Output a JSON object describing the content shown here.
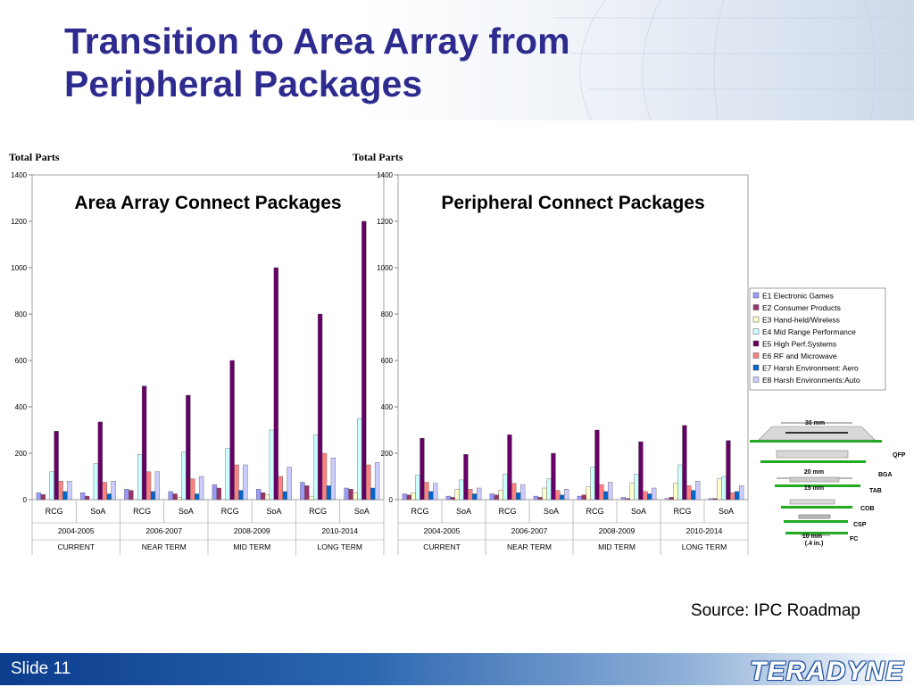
{
  "slide": {
    "title_line1": "Transition to Area Array from",
    "title_line2": "Peripheral Packages",
    "source": "Source: IPC Roadmap",
    "slide_number": "Slide 11",
    "logo_text": "TERADYNE"
  },
  "colors": {
    "title": "#2e2b8f",
    "footer": "#1d4f9e"
  },
  "chart_data": [
    {
      "type": "bar",
      "title": "Area Array Connect Packages",
      "ylabel": "Total Parts",
      "ylim": [
        0,
        1400
      ],
      "yticks": [
        0,
        200,
        400,
        600,
        800,
        1000,
        1200,
        1400
      ],
      "categories": [
        "RCG",
        "SoA",
        "RCG",
        "SoA",
        "RCG",
        "SoA",
        "RCG",
        "SoA"
      ],
      "groups_level2": [
        "2004-2005",
        "2006-2007",
        "2008-2009",
        "2010-2014"
      ],
      "groups_level3": [
        "CURRENT",
        "NEAR TERM",
        "MID TERM",
        "LONG TERM"
      ],
      "series": [
        {
          "name": "E1 Electronic Games",
          "values": [
            30,
            30,
            45,
            35,
            65,
            45,
            75,
            50
          ]
        },
        {
          "name": "E2 Consumer Products",
          "values": [
            22,
            15,
            40,
            25,
            50,
            30,
            60,
            45
          ]
        },
        {
          "name": "E3 Hand-held/Wireless",
          "values": [
            0,
            0,
            0,
            10,
            0,
            20,
            15,
            30
          ]
        },
        {
          "name": "E4 Mid Range Performance",
          "values": [
            120,
            155,
            195,
            205,
            220,
            300,
            280,
            350
          ]
        },
        {
          "name": "E5 High Perf.Systems",
          "values": [
            295,
            335,
            490,
            450,
            600,
            1000,
            800,
            1200
          ]
        },
        {
          "name": "E6 RF and Microwave",
          "values": [
            80,
            75,
            120,
            90,
            150,
            100,
            200,
            150
          ]
        },
        {
          "name": "E7 Harsh Environment: Aero",
          "values": [
            35,
            25,
            35,
            25,
            40,
            35,
            60,
            50
          ]
        },
        {
          "name": "E8 Harsh Environments:Auto",
          "values": [
            80,
            80,
            120,
            100,
            150,
            140,
            180,
            160
          ]
        }
      ]
    },
    {
      "type": "bar",
      "title": "Peripheral Connect Packages",
      "ylabel": "Total Parts",
      "ylim": [
        0,
        1400
      ],
      "yticks": [
        0,
        200,
        400,
        600,
        800,
        1000,
        1200,
        1400
      ],
      "categories": [
        "RCG",
        "SoA",
        "RCG",
        "SoA",
        "RCG",
        "SoA",
        "RCG",
        "SoA"
      ],
      "groups_level2": [
        "2004-2005",
        "2006-2007",
        "2008-2009",
        "2010-2014"
      ],
      "groups_level3": [
        "CURRENT",
        "NEAR TERM",
        "MID TERM",
        "LONG TERM"
      ],
      "series": [
        {
          "name": "E1 Electronic Games",
          "values": [
            25,
            15,
            25,
            15,
            15,
            10,
            5,
            5
          ]
        },
        {
          "name": "E2 Consumer Products",
          "values": [
            20,
            10,
            20,
            10,
            20,
            5,
            10,
            5
          ]
        },
        {
          "name": "E3 Hand-held/Wireless",
          "values": [
            30,
            45,
            40,
            50,
            55,
            70,
            70,
            90
          ]
        },
        {
          "name": "E4 Mid Range Performance",
          "values": [
            105,
            85,
            110,
            90,
            140,
            110,
            150,
            100
          ]
        },
        {
          "name": "E5 High Perf.Systems",
          "values": [
            265,
            195,
            280,
            200,
            300,
            250,
            320,
            255
          ]
        },
        {
          "name": "E6 RF and Microwave",
          "values": [
            75,
            45,
            70,
            40,
            65,
            35,
            60,
            30
          ]
        },
        {
          "name": "E7 Harsh Environment: Aero",
          "values": [
            35,
            25,
            30,
            20,
            35,
            25,
            40,
            35
          ]
        },
        {
          "name": "E8 Harsh Environments:Auto",
          "values": [
            70,
            50,
            65,
            45,
            75,
            50,
            80,
            60
          ]
        }
      ]
    }
  ],
  "legend": {
    "items": [
      {
        "label": "E1 Electronic Games",
        "color": "#9999ff"
      },
      {
        "label": "E2 Consumer Products",
        "color": "#993366"
      },
      {
        "label": "E3 Hand-held/Wireless",
        "color": "#ffffcc"
      },
      {
        "label": "E4 Mid Range Performance",
        "color": "#ccffff"
      },
      {
        "label": "E5 High Perf.Systems",
        "color": "#660066"
      },
      {
        "label": "E6 RF and Microwave",
        "color": "#ff8080"
      },
      {
        "label": "E7 Harsh Environment: Aero",
        "color": "#0066cc"
      },
      {
        "label": "E8 Harsh Environments:Auto",
        "color": "#ccccff"
      }
    ]
  },
  "package_diagram": {
    "dimensions": [
      "30 mm",
      "20 mm",
      "15 mm",
      "10 mm",
      "(.4 in.)"
    ],
    "labels": [
      "QFP",
      "BGA",
      "TAB",
      "COB",
      "CSP",
      "FC"
    ]
  }
}
